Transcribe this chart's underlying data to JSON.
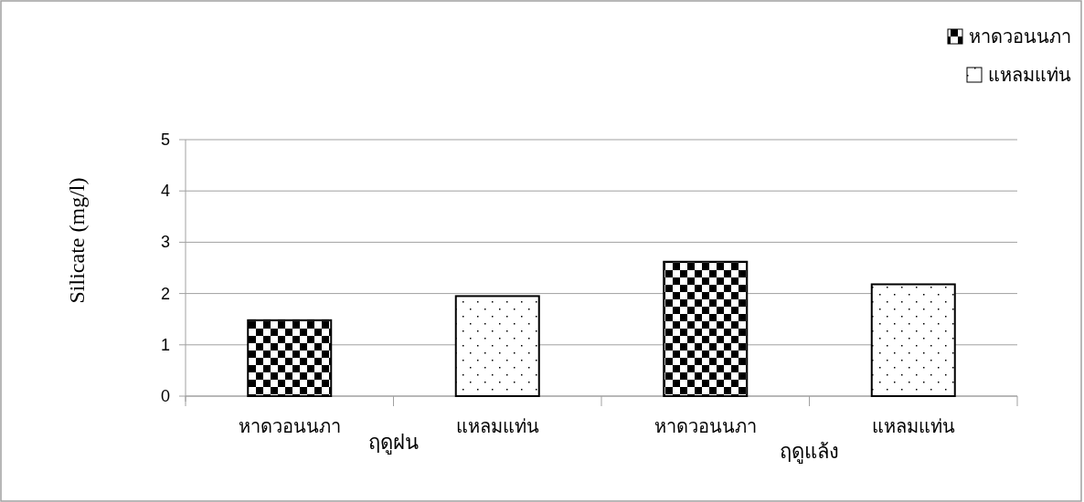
{
  "chart_data": {
    "type": "bar",
    "ylabel": "Silicate (mg/l)",
    "categories": [
      "หาดวอนนภา",
      "แหลมแท่น",
      "หาดวอนนภา",
      "แหลมแท่น"
    ],
    "series": [
      {
        "name": "หาดวอนนภา",
        "color": "#000000",
        "values": [
          1.48,
          null,
          2.62,
          null
        ]
      },
      {
        "name": "แหลมแท่น",
        "color": "#000000",
        "values": [
          null,
          1.95,
          null,
          2.18
        ]
      }
    ],
    "ylim": [
      0,
      5
    ],
    "yticks": [
      0,
      1,
      2,
      3,
      4,
      5
    ],
    "grid": "y",
    "legend": "top right",
    "annotations": [
      "ฤดูฝน",
      "ฤดูแล้ง"
    ]
  }
}
